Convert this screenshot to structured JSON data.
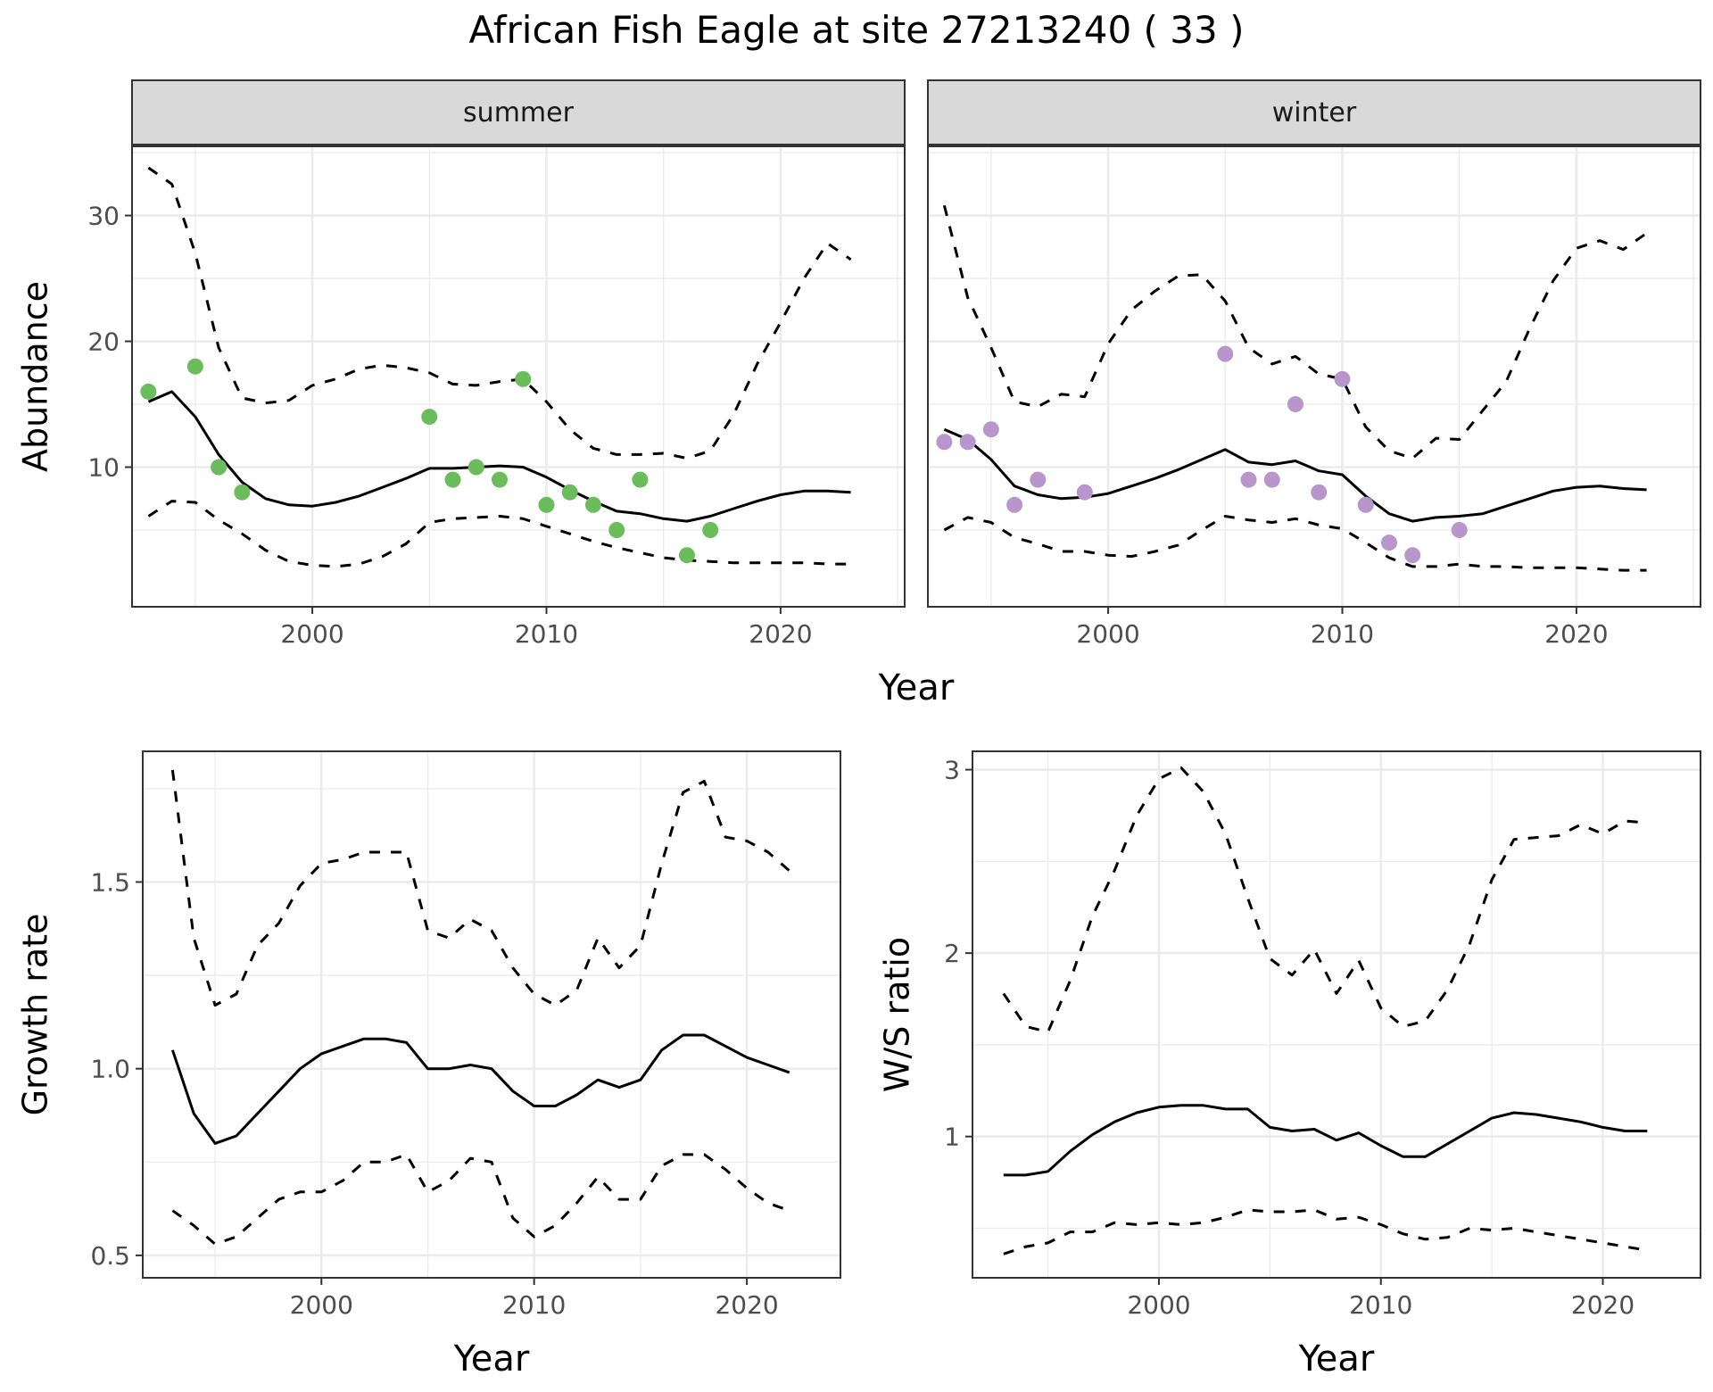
{
  "title": "African Fish Eagle at site 27213240 ( 33 )",
  "chart_data": [
    {
      "id": "summer",
      "type": "line",
      "strip_label": "summer",
      "xlabel": "Year",
      "ylabel": "Abundance",
      "xlim": [
        1992.3,
        2025.3
      ],
      "ylim": [
        -1.1,
        35.5
      ],
      "xticks": [
        2000,
        2010,
        2020
      ],
      "yticks": [
        10,
        20,
        30
      ],
      "grid": true,
      "series": [
        {
          "role": "estimate",
          "dash": "none",
          "x": [
            1993,
            1994,
            1995,
            1996,
            1997,
            1998,
            1999,
            2000,
            2001,
            2002,
            2003,
            2004,
            2005,
            2006,
            2007,
            2008,
            2009,
            2010,
            2011,
            2012,
            2013,
            2014,
            2015,
            2016,
            2017,
            2018,
            2019,
            2020,
            2021,
            2022,
            2023
          ],
          "y": [
            15.2,
            16.0,
            14.0,
            11.0,
            8.8,
            7.5,
            7.0,
            6.9,
            7.2,
            7.7,
            8.4,
            9.1,
            9.9,
            9.9,
            10.0,
            10.1,
            10.0,
            9.2,
            8.2,
            7.3,
            6.5,
            6.3,
            5.9,
            5.7,
            6.1,
            6.7,
            7.3,
            7.8,
            8.1,
            8.1,
            8.0
          ]
        },
        {
          "role": "upper",
          "dash": "dashed",
          "x": [
            1993,
            1994,
            1995,
            1996,
            1997,
            1998,
            1999,
            2000,
            2001,
            2002,
            2003,
            2004,
            2005,
            2006,
            2007,
            2008,
            2009,
            2010,
            2011,
            2012,
            2013,
            2014,
            2015,
            2016,
            2017,
            2018,
            2019,
            2020,
            2021,
            2022,
            2023
          ],
          "y": [
            33.8,
            32.5,
            27.0,
            19.5,
            15.5,
            15.1,
            15.3,
            16.5,
            17.0,
            17.8,
            18.1,
            17.9,
            17.5,
            16.6,
            16.5,
            16.8,
            17.0,
            15.2,
            13.0,
            11.5,
            11.0,
            11.0,
            11.1,
            10.7,
            11.3,
            14.2,
            18.2,
            21.5,
            25.0,
            27.8,
            26.5
          ]
        },
        {
          "role": "lower",
          "dash": "dashed",
          "x": [
            1993,
            1994,
            1995,
            1996,
            1997,
            1998,
            1999,
            2000,
            2001,
            2002,
            2003,
            2004,
            2005,
            2006,
            2007,
            2008,
            2009,
            2010,
            2011,
            2012,
            2013,
            2014,
            2015,
            2016,
            2017,
            2018,
            2019,
            2020,
            2021,
            2022,
            2023
          ],
          "y": [
            6.1,
            7.3,
            7.2,
            5.8,
            4.7,
            3.4,
            2.5,
            2.2,
            2.1,
            2.3,
            2.9,
            3.9,
            5.6,
            5.9,
            6.0,
            6.1,
            5.9,
            5.3,
            4.7,
            4.1,
            3.6,
            3.2,
            2.8,
            2.6,
            2.5,
            2.4,
            2.4,
            2.4,
            2.4,
            2.3,
            2.3
          ]
        }
      ],
      "points": {
        "color": "#6bbc5a",
        "x": [
          1993,
          1995,
          1996,
          1997,
          2005,
          2006,
          2007,
          2008,
          2009,
          2010,
          2011,
          2012,
          2013,
          2014,
          2016,
          2017
        ],
        "y": [
          16,
          18,
          10,
          8,
          14,
          9,
          10,
          9,
          17,
          7,
          8,
          7,
          5,
          9,
          3,
          5
        ]
      }
    },
    {
      "id": "winter",
      "type": "line",
      "strip_label": "winter",
      "xlabel": "Year",
      "ylabel": "",
      "xlim": [
        1992.3,
        2025.3
      ],
      "ylim": [
        -1.1,
        35.5
      ],
      "xticks": [
        2000,
        2010,
        2020
      ],
      "yticks": [],
      "grid": true,
      "series": [
        {
          "role": "estimate",
          "dash": "none",
          "x": [
            1993,
            1994,
            1995,
            1996,
            1997,
            1998,
            1999,
            2000,
            2001,
            2002,
            2003,
            2004,
            2005,
            2006,
            2007,
            2008,
            2009,
            2010,
            2011,
            2012,
            2013,
            2014,
            2015,
            2016,
            2017,
            2018,
            2019,
            2020,
            2021,
            2022,
            2023
          ],
          "y": [
            13.0,
            12.2,
            10.6,
            8.5,
            7.8,
            7.5,
            7.6,
            7.9,
            8.5,
            9.1,
            9.8,
            10.6,
            11.4,
            10.4,
            10.2,
            10.5,
            9.7,
            9.4,
            7.7,
            6.3,
            5.7,
            6.0,
            6.1,
            6.3,
            6.9,
            7.5,
            8.1,
            8.4,
            8.5,
            8.3,
            8.2
          ]
        },
        {
          "role": "upper",
          "dash": "dashed",
          "x": [
            1993,
            1994,
            1995,
            1996,
            1997,
            1998,
            1999,
            2000,
            2001,
            2002,
            2003,
            2004,
            2005,
            2006,
            2007,
            2008,
            2009,
            2010,
            2011,
            2012,
            2013,
            2014,
            2015,
            2016,
            2017,
            2018,
            2019,
            2020,
            2021,
            2022,
            2023
          ],
          "y": [
            30.8,
            23.5,
            19.5,
            15.2,
            14.8,
            15.8,
            15.6,
            19.8,
            22.5,
            24.0,
            25.2,
            25.3,
            23.2,
            19.5,
            18.2,
            18.8,
            17.4,
            17.0,
            13.2,
            11.3,
            10.7,
            12.3,
            12.2,
            14.5,
            16.8,
            21.0,
            24.8,
            27.4,
            28.0,
            27.3,
            28.6
          ]
        },
        {
          "role": "lower",
          "dash": "dashed",
          "x": [
            1993,
            1994,
            1995,
            1996,
            1997,
            1998,
            1999,
            2000,
            2001,
            2002,
            2003,
            2004,
            2005,
            2006,
            2007,
            2008,
            2009,
            2010,
            2011,
            2012,
            2013,
            2014,
            2015,
            2016,
            2017,
            2018,
            2019,
            2020,
            2021,
            2022,
            2023
          ],
          "y": [
            5.0,
            6.0,
            5.6,
            4.4,
            3.9,
            3.3,
            3.3,
            3.0,
            2.9,
            3.3,
            3.8,
            5.0,
            6.1,
            5.8,
            5.6,
            5.9,
            5.4,
            5.1,
            4.0,
            2.8,
            2.1,
            2.1,
            2.3,
            2.1,
            2.1,
            2.0,
            2.0,
            2.0,
            1.9,
            1.8,
            1.8
          ]
        }
      ],
      "points": {
        "color": "#b896cc",
        "x": [
          1993,
          1994,
          1995,
          1996,
          1997,
          1999,
          2005,
          2006,
          2007,
          2008,
          2009,
          2010,
          2011,
          2012,
          2013,
          2015
        ],
        "y": [
          12,
          12,
          13,
          7,
          9,
          8,
          19,
          9,
          9,
          15,
          8,
          17,
          7,
          4,
          3,
          5
        ]
      }
    },
    {
      "id": "growth",
      "type": "line",
      "xlabel": "Year",
      "ylabel": "Growth rate",
      "xlim": [
        1991.6,
        2024.4
      ],
      "ylim": [
        0.44,
        1.85
      ],
      "xticks": [
        2000,
        2010,
        2020
      ],
      "yticks": [
        0.5,
        1.0,
        1.5
      ],
      "ytick_labels": [
        "0.5",
        "1.0",
        "1.5"
      ],
      "grid": true,
      "series": [
        {
          "role": "estimate",
          "dash": "none",
          "x": [
            1993,
            1994,
            1995,
            1996,
            1997,
            1998,
            1999,
            2000,
            2001,
            2002,
            2003,
            2004,
            2005,
            2006,
            2007,
            2008,
            2009,
            2010,
            2011,
            2012,
            2013,
            2014,
            2015,
            2016,
            2017,
            2018,
            2019,
            2020,
            2021,
            2022
          ],
          "y": [
            1.05,
            0.88,
            0.8,
            0.82,
            0.88,
            0.94,
            1.0,
            1.04,
            1.06,
            1.08,
            1.08,
            1.07,
            1.0,
            1.0,
            1.01,
            1.0,
            0.94,
            0.9,
            0.9,
            0.93,
            0.97,
            0.95,
            0.97,
            1.05,
            1.09,
            1.09,
            1.06,
            1.03,
            1.01,
            0.99
          ]
        },
        {
          "role": "upper",
          "dash": "dashed",
          "x": [
            1993,
            1994,
            1995,
            1996,
            1997,
            1998,
            1999,
            2000,
            2001,
            2002,
            2003,
            2004,
            2005,
            2006,
            2007,
            2008,
            2009,
            2010,
            2011,
            2012,
            2013,
            2014,
            2015,
            2016,
            2017,
            2018,
            2019,
            2020,
            2021,
            2022
          ],
          "y": [
            1.8,
            1.35,
            1.17,
            1.2,
            1.33,
            1.39,
            1.49,
            1.55,
            1.56,
            1.58,
            1.58,
            1.58,
            1.37,
            1.35,
            1.4,
            1.37,
            1.27,
            1.2,
            1.17,
            1.21,
            1.35,
            1.27,
            1.33,
            1.55,
            1.74,
            1.77,
            1.62,
            1.61,
            1.58,
            1.53
          ]
        },
        {
          "role": "lower",
          "dash": "dashed",
          "x": [
            1993,
            1994,
            1995,
            1996,
            1997,
            1998,
            1999,
            2000,
            2001,
            2002,
            2003,
            2004,
            2005,
            2006,
            2007,
            2008,
            2009,
            2010,
            2011,
            2012,
            2013,
            2014,
            2015,
            2016,
            2017,
            2018,
            2019,
            2020,
            2021,
            2022
          ],
          "y": [
            0.62,
            0.58,
            0.53,
            0.55,
            0.6,
            0.65,
            0.67,
            0.67,
            0.7,
            0.75,
            0.75,
            0.77,
            0.67,
            0.7,
            0.76,
            0.75,
            0.6,
            0.55,
            0.58,
            0.64,
            0.71,
            0.65,
            0.65,
            0.74,
            0.77,
            0.77,
            0.73,
            0.68,
            0.64,
            0.62
          ]
        }
      ]
    },
    {
      "id": "ratio",
      "type": "line",
      "xlabel": "Year",
      "ylabel": "W/S ratio",
      "xlim": [
        1991.6,
        2024.4
      ],
      "ylim": [
        0.23,
        3.1
      ],
      "xticks": [
        2000,
        2010,
        2020
      ],
      "yticks": [
        1,
        2,
        3
      ],
      "ytick_labels": [
        "1",
        "2",
        "3"
      ],
      "grid": true,
      "series": [
        {
          "role": "estimate",
          "dash": "none",
          "x": [
            1993,
            1994,
            1995,
            1996,
            1997,
            1998,
            1999,
            2000,
            2001,
            2002,
            2003,
            2004,
            2005,
            2006,
            2007,
            2008,
            2009,
            2010,
            2011,
            2012,
            2013,
            2014,
            2015,
            2016,
            2017,
            2018,
            2019,
            2020,
            2021,
            2022
          ],
          "y": [
            0.79,
            0.79,
            0.81,
            0.92,
            1.01,
            1.08,
            1.13,
            1.16,
            1.17,
            1.17,
            1.15,
            1.15,
            1.05,
            1.03,
            1.04,
            0.98,
            1.02,
            0.95,
            0.89,
            0.89,
            0.96,
            1.03,
            1.1,
            1.13,
            1.12,
            1.1,
            1.08,
            1.05,
            1.03,
            1.03
          ]
        },
        {
          "role": "upper",
          "dash": "dashed",
          "x": [
            1993,
            1994,
            1995,
            1996,
            1997,
            1998,
            1999,
            2000,
            2001,
            2002,
            2003,
            2004,
            2005,
            2006,
            2007,
            2008,
            2009,
            2010,
            2011,
            2012,
            2013,
            2014,
            2015,
            2016,
            2017,
            2018,
            2019,
            2020,
            2021,
            2022
          ],
          "y": [
            1.78,
            1.6,
            1.57,
            1.85,
            2.2,
            2.45,
            2.75,
            2.95,
            3.01,
            2.88,
            2.65,
            2.3,
            1.97,
            1.88,
            2.02,
            1.78,
            1.96,
            1.7,
            1.6,
            1.63,
            1.8,
            2.05,
            2.4,
            2.62,
            2.63,
            2.64,
            2.7,
            2.65,
            2.72,
            2.71
          ]
        },
        {
          "role": "lower",
          "dash": "dashed",
          "x": [
            1993,
            1994,
            1995,
            1996,
            1997,
            1998,
            1999,
            2000,
            2001,
            2002,
            2003,
            2004,
            2005,
            2006,
            2007,
            2008,
            2009,
            2010,
            2011,
            2012,
            2013,
            2014,
            2015,
            2016,
            2017,
            2018,
            2019,
            2020,
            2021,
            2022
          ],
          "y": [
            0.36,
            0.4,
            0.42,
            0.48,
            0.48,
            0.53,
            0.52,
            0.53,
            0.52,
            0.53,
            0.56,
            0.6,
            0.59,
            0.59,
            0.6,
            0.55,
            0.56,
            0.52,
            0.47,
            0.44,
            0.45,
            0.5,
            0.49,
            0.5,
            0.48,
            0.46,
            0.44,
            0.42,
            0.4,
            0.38
          ]
        }
      ]
    }
  ]
}
